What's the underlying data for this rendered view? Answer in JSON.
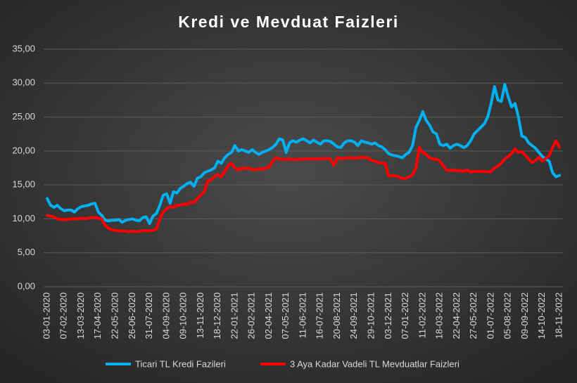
{
  "chart_data": {
    "type": "line",
    "title": "Kredi ve Mevduat Faizleri",
    "categories": [
      "03-01-2020",
      null,
      null,
      null,
      null,
      "07-02-2020",
      null,
      null,
      null,
      null,
      "13-03-2020",
      null,
      null,
      null,
      null,
      "17-04-2020",
      null,
      null,
      null,
      null,
      "22-05-2020",
      null,
      null,
      null,
      null,
      "26-06-2020",
      null,
      null,
      null,
      null,
      "31-07-2020",
      null,
      null,
      null,
      null,
      "04-09-2020",
      null,
      null,
      null,
      null,
      "09-10-2020",
      null,
      null,
      null,
      null,
      "13-11-2020",
      null,
      null,
      null,
      null,
      "18-12-2020",
      null,
      null,
      null,
      null,
      "22-01-2021",
      null,
      null,
      null,
      null,
      "26-02-2021",
      null,
      null,
      null,
      null,
      "02-04-2021",
      null,
      null,
      null,
      null,
      "07-05-2021",
      null,
      null,
      null,
      null,
      "11-06-2021",
      null,
      null,
      null,
      null,
      "16-07-2021",
      null,
      null,
      null,
      null,
      "20-08-2021",
      null,
      null,
      null,
      null,
      "24-09-2021",
      null,
      null,
      null,
      null,
      "29-10-2021",
      null,
      null,
      null,
      null,
      "03-12-2021",
      null,
      null,
      null,
      null,
      "07-01-2022",
      null,
      null,
      null,
      null,
      "11-02-2022",
      null,
      null,
      null,
      null,
      "18-03-2022",
      null,
      null,
      null,
      null,
      "22-04-2022",
      null,
      null,
      null,
      null,
      "27-05-2022",
      null,
      null,
      null,
      null,
      "01-07-2022",
      null,
      null,
      null,
      null,
      "05-08-2022",
      null,
      null,
      null,
      null,
      "09-09-2022",
      null,
      null,
      null,
      null,
      "14-10-2022",
      null,
      null,
      null,
      null,
      "18-11-2022"
    ],
    "series": [
      {
        "name": "Ticari TL Kredi Fazileri",
        "color": "#00b0f0",
        "values": [
          13.0,
          12.0,
          11.7,
          12.0,
          11.5,
          11.2,
          11.3,
          11.3,
          11.0,
          11.5,
          11.8,
          11.9,
          12.0,
          12.2,
          12.3,
          11.0,
          10.5,
          9.8,
          9.7,
          9.8,
          9.8,
          9.9,
          9.5,
          9.8,
          9.9,
          10.0,
          9.8,
          9.7,
          10.2,
          10.3,
          9.3,
          10.4,
          10.8,
          12.0,
          13.5,
          13.7,
          12.3,
          14.0,
          13.8,
          14.5,
          14.8,
          15.2,
          15.4,
          14.8,
          16.0,
          16.2,
          16.8,
          17.0,
          17.2,
          17.5,
          18.5,
          18.2,
          19.0,
          19.5,
          19.8,
          20.8,
          20.0,
          20.2,
          20.0,
          19.8,
          20.2,
          19.8,
          19.5,
          19.8,
          20.0,
          20.2,
          20.5,
          21.0,
          21.8,
          21.6,
          19.8,
          21.2,
          21.5,
          21.3,
          21.6,
          21.8,
          21.5,
          21.2,
          21.6,
          21.3,
          21.0,
          21.5,
          21.5,
          21.4,
          21.0,
          20.6,
          20.5,
          21.2,
          21.5,
          21.5,
          21.3,
          20.8,
          21.5,
          21.3,
          21.2,
          21.0,
          21.2,
          20.8,
          20.6,
          20.2,
          19.6,
          19.4,
          19.3,
          19.2,
          19.0,
          19.5,
          19.8,
          20.8,
          23.5,
          24.5,
          25.8,
          24.5,
          23.8,
          22.8,
          22.5,
          21.0,
          20.8,
          21.0,
          20.4,
          20.8,
          21.0,
          20.8,
          20.5,
          20.8,
          21.5,
          22.5,
          23.0,
          23.5,
          24.0,
          25.0,
          27.0,
          29.5,
          27.5,
          27.3,
          29.8,
          28.0,
          26.5,
          27.0,
          25.0,
          22.2,
          22.0,
          21.2,
          20.8,
          20.4,
          19.8,
          19.2,
          18.8,
          18.5,
          16.8,
          16.2,
          16.4
        ]
      },
      {
        "name": "3 Aya Kadar Vadeli TL Mevduatlar Faizleri",
        "color": "#ff0000",
        "values": [
          10.5,
          10.4,
          10.3,
          10.0,
          9.9,
          9.9,
          9.9,
          10.0,
          10.0,
          10.0,
          10.1,
          10.0,
          10.1,
          10.2,
          10.2,
          10.1,
          10.0,
          9.0,
          8.6,
          8.4,
          8.3,
          8.2,
          8.2,
          8.2,
          8.1,
          8.2,
          8.1,
          8.2,
          8.2,
          8.3,
          8.2,
          8.3,
          8.5,
          10.0,
          11.0,
          11.5,
          11.8,
          11.7,
          12.0,
          12.0,
          12.2,
          12.1,
          12.5,
          12.4,
          13.0,
          13.5,
          14.0,
          15.5,
          15.8,
          16.2,
          16.5,
          16.2,
          17.0,
          17.8,
          18.2,
          17.5,
          17.2,
          17.5,
          17.4,
          17.5,
          17.3,
          17.2,
          17.4,
          17.3,
          17.5,
          17.6,
          18.5,
          19.0,
          18.8,
          18.8,
          18.7,
          18.8,
          18.8,
          18.7,
          18.8,
          18.8,
          18.8,
          18.9,
          18.8,
          18.8,
          18.9,
          18.9,
          18.9,
          18.8,
          17.9,
          19.0,
          18.9,
          18.9,
          19.0,
          19.0,
          18.9,
          19.0,
          19.1,
          19.0,
          19.0,
          18.6,
          18.5,
          18.3,
          18.2,
          18.2,
          16.3,
          16.4,
          16.3,
          16.2,
          15.9,
          16.0,
          16.2,
          16.5,
          17.5,
          20.5,
          19.8,
          19.5,
          19.0,
          18.8,
          18.8,
          18.5,
          17.8,
          17.2,
          17.1,
          17.2,
          17.1,
          17.1,
          17.0,
          17.2,
          16.9,
          17.0,
          17.0,
          17.0,
          17.0,
          16.9,
          17.0,
          17.5,
          17.8,
          18.2,
          18.8,
          19.2,
          19.6,
          20.3,
          19.8,
          19.9,
          19.4,
          18.8,
          18.3,
          18.6,
          19.1,
          18.5,
          18.9,
          19.3,
          20.5,
          21.5,
          20.6
        ]
      }
    ],
    "ylim": [
      0,
      35
    ],
    "yticks": [
      {
        "value": 0,
        "label": "0,00"
      },
      {
        "value": 5,
        "label": "5,00"
      },
      {
        "value": 10,
        "label": "10,00"
      },
      {
        "value": 15,
        "label": "15,00"
      },
      {
        "value": 20,
        "label": "20,00"
      },
      {
        "value": 25,
        "label": "25,00"
      },
      {
        "value": 30,
        "label": "30,00"
      },
      {
        "value": 35,
        "label": "35,00"
      }
    ],
    "grid": true,
    "legend": "bottom"
  }
}
